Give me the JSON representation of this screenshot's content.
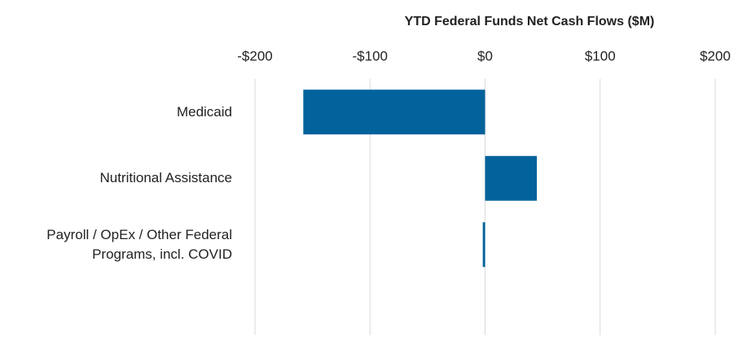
{
  "chart_data": {
    "type": "bar",
    "orientation": "horizontal",
    "title": "YTD Federal Funds Net Cash Flows ($M)",
    "categories": [
      "Medicaid",
      "Nutritional Assistance",
      "Payroll / OpEx / Other Federal Programs, incl. COVID"
    ],
    "values": [
      -158,
      45,
      -2
    ],
    "color": "#02629b",
    "xlim": [
      -200,
      200
    ],
    "xticks": [
      {
        "value": -200,
        "label": "-$200"
      },
      {
        "value": -100,
        "label": "-$100"
      },
      {
        "value": 0,
        "label": "$0"
      },
      {
        "value": 100,
        "label": "$100"
      },
      {
        "value": 200,
        "label": "$200"
      }
    ],
    "grid": true
  }
}
